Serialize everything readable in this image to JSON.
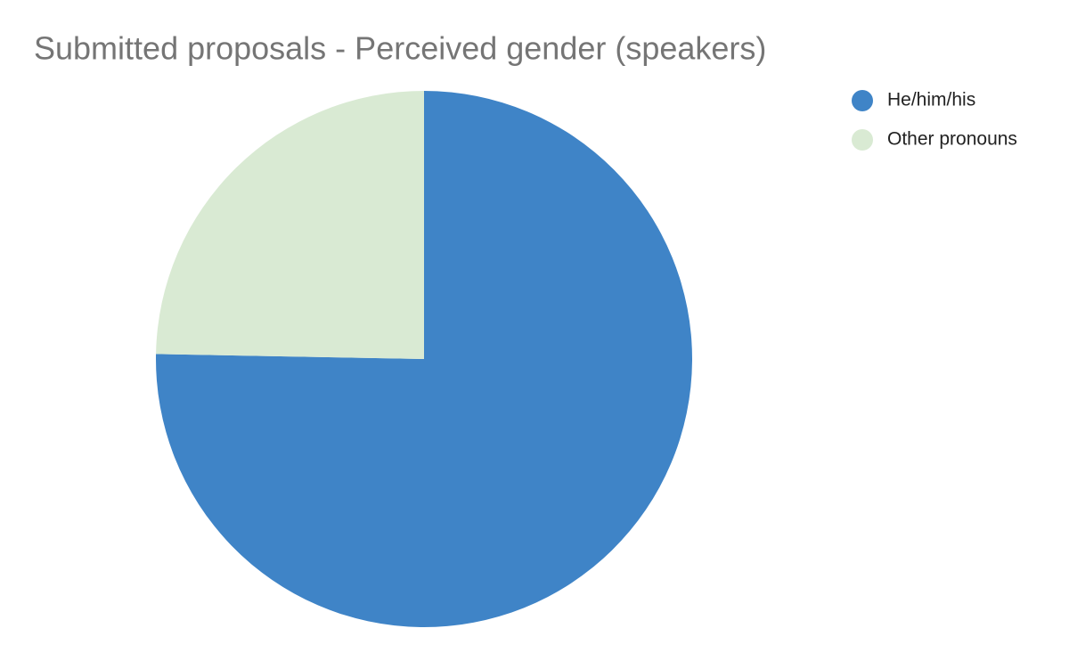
{
  "chart_data": {
    "type": "pie",
    "title": "Submitted proposals - Perceived gender (speakers)",
    "categories": [
      "He/him/his",
      "Other pronouns"
    ],
    "values": [
      75.3,
      24.7
    ],
    "colors": [
      "#3f84c7",
      "#d9ead3"
    ],
    "legend": "top-right"
  }
}
